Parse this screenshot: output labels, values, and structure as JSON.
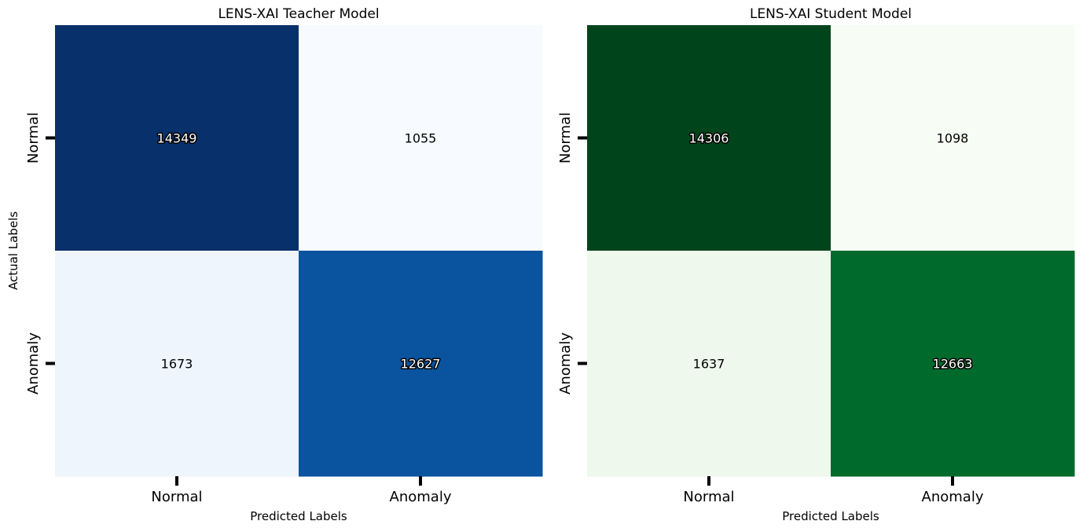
{
  "chart_data": [
    {
      "type": "heatmap",
      "title": "LENS-XAI Teacher Model",
      "xlabel": "Predicted Labels",
      "ylabel": "Actual Labels",
      "x_categories": [
        "Normal",
        "Anomaly"
      ],
      "y_categories": [
        "Normal",
        "Anomaly"
      ],
      "values": [
        [
          14349,
          1055
        ],
        [
          1673,
          12627
        ]
      ],
      "colormap": "Blues",
      "colorbar": false,
      "cell_colors": [
        [
          "#08306b",
          "#f7fbff"
        ],
        [
          "#eef5fc",
          "#0a539e"
        ]
      ]
    },
    {
      "type": "heatmap",
      "title": "LENS-XAI Student Model",
      "xlabel": "Predicted Labels",
      "ylabel": "",
      "x_categories": [
        "Normal",
        "Anomaly"
      ],
      "y_categories": [
        "Normal",
        "Anomaly"
      ],
      "values": [
        [
          14306,
          1098
        ],
        [
          1637,
          12663
        ]
      ],
      "colormap": "Greens",
      "colorbar": false,
      "cell_colors": [
        [
          "#00441b",
          "#f7fcf5"
        ],
        [
          "#eef8ec",
          "#006a2d"
        ]
      ]
    }
  ]
}
